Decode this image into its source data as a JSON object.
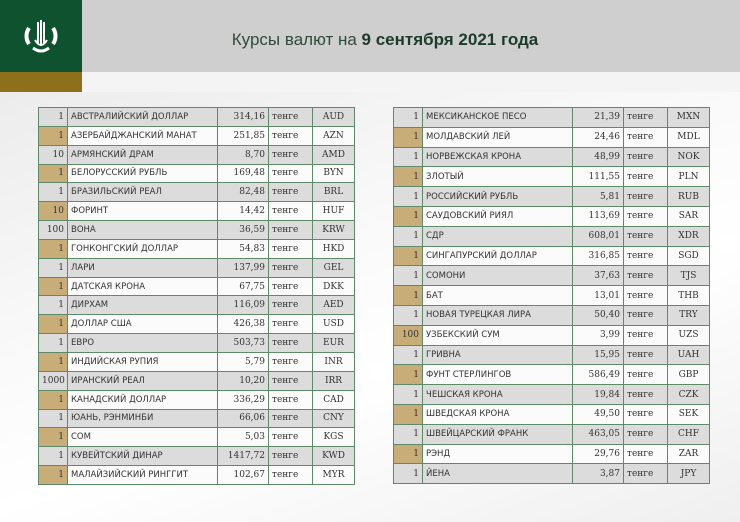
{
  "header": {
    "title_prefix": "Курсы валют на ",
    "title_date": "9 сентября 2021 года",
    "brand_color": "#0f5230",
    "accent_color": "#8e6f1b",
    "logo_icon": "national-bank-emblem-icon"
  },
  "unit_label": "тенге",
  "left_table": [
    {
      "qty": "1",
      "name": "АВСТРАЛИЙСКИЙ ДОЛЛАР",
      "rate": "314,16",
      "unit": "тенге",
      "code": "AUD"
    },
    {
      "qty": "1",
      "name": "АЗЕРБАЙДЖАНСКИЙ МАНАТ",
      "rate": "251,85",
      "unit": "тенге",
      "code": "AZN"
    },
    {
      "qty": "10",
      "name": "АРМЯНСКИЙ  ДРАМ",
      "rate": "8,70",
      "unit": "тенге",
      "code": "AMD"
    },
    {
      "qty": "1",
      "name": "БЕЛОРУССКИЙ РУБЛЬ",
      "rate": "169,48",
      "unit": "тенге",
      "code": "BYN"
    },
    {
      "qty": "1",
      "name": "БРАЗИЛЬСКИЙ РЕАЛ",
      "rate": "82,48",
      "unit": "тенге",
      "code": "BRL"
    },
    {
      "qty": "10",
      "name": "ФОРИНТ",
      "rate": "14,42",
      "unit": "тенге",
      "code": "HUF"
    },
    {
      "qty": "100",
      "name": "ВОНА",
      "rate": "36,59",
      "unit": "тенге",
      "code": "KRW"
    },
    {
      "qty": "1",
      "name": "ГОНКОНГСКИЙ ДОЛЛАР",
      "rate": "54,83",
      "unit": "тенге",
      "code": "HKD"
    },
    {
      "qty": "1",
      "name": "ЛАРИ",
      "rate": "137,99",
      "unit": "тенге",
      "code": "GEL"
    },
    {
      "qty": "1",
      "name": "ДАТСКАЯ КРОНА",
      "rate": "67,75",
      "unit": "тенге",
      "code": "DKK"
    },
    {
      "qty": "1",
      "name": "ДИРХАМ",
      "rate": "116,09",
      "unit": "тенге",
      "code": "AED"
    },
    {
      "qty": "1",
      "name": "ДОЛЛАР США",
      "rate": "426,38",
      "unit": "тенге",
      "code": "USD"
    },
    {
      "qty": "1",
      "name": "ЕВРО",
      "rate": "503,73",
      "unit": "тенге",
      "code": "EUR"
    },
    {
      "qty": "1",
      "name": "ИНДИЙСКАЯ РУПИЯ",
      "rate": "5,79",
      "unit": "тенге",
      "code": "INR"
    },
    {
      "qty": "1000",
      "name": "ИРАНСКИЙ РЕАЛ",
      "rate": "10,20",
      "unit": "тенге",
      "code": "IRR"
    },
    {
      "qty": "1",
      "name": "КАНАДСКИЙ ДОЛЛАР",
      "rate": "336,29",
      "unit": "тенге",
      "code": "CAD"
    },
    {
      "qty": "1",
      "name": "ЮАНЬ, РЭНМИНБИ",
      "rate": "66,06",
      "unit": "тенге",
      "code": "CNY"
    },
    {
      "qty": "1",
      "name": "СОМ",
      "rate": "5,03",
      "unit": "тенге",
      "code": "KGS"
    },
    {
      "qty": "1",
      "name": "КУВЕЙТСКИЙ ДИНАР",
      "rate": "1417,72",
      "unit": "тенге",
      "code": "KWD"
    },
    {
      "qty": "1",
      "name": "МАЛАЙЗИЙСКИЙ РИНГГИТ",
      "rate": "102,67",
      "unit": "тенге",
      "code": "MYR"
    }
  ],
  "right_table": [
    {
      "qty": "1",
      "name": "МЕКСИКАНСКОЕ ПЕСО",
      "rate": "21,39",
      "unit": "тенге",
      "code": "MXN"
    },
    {
      "qty": "1",
      "name": "МОЛДАВСКИЙ ЛЕЙ",
      "rate": "24,46",
      "unit": "тенге",
      "code": "MDL"
    },
    {
      "qty": "1",
      "name": "НОРВЕЖСКАЯ КРОНА",
      "rate": "48,99",
      "unit": "тенге",
      "code": "NOK"
    },
    {
      "qty": "1",
      "name": "ЗЛОТЫЙ",
      "rate": "111,55",
      "unit": "тенге",
      "code": "PLN"
    },
    {
      "qty": "1",
      "name": "РОССИЙСКИЙ РУБЛЬ",
      "rate": "5,81",
      "unit": "тенге",
      "code": "RUB"
    },
    {
      "qty": "1",
      "name": "САУДОВСКИЙ РИЯЛ",
      "rate": "113,69",
      "unit": "тенге",
      "code": "SAR"
    },
    {
      "qty": "1",
      "name": "СДР",
      "rate": "608,01",
      "unit": "тенге",
      "code": "XDR"
    },
    {
      "qty": "1",
      "name": "СИНГАПУРСКИЙ ДОЛЛАР",
      "rate": "316,85",
      "unit": "тенге",
      "code": "SGD"
    },
    {
      "qty": "1",
      "name": "СОМОНИ",
      "rate": "37,63",
      "unit": "тенге",
      "code": "TJS"
    },
    {
      "qty": "1",
      "name": "БАТ",
      "rate": "13,01",
      "unit": "тенге",
      "code": "THB"
    },
    {
      "qty": "1",
      "name": "НОВАЯ ТУРЕЦКАЯ ЛИРА",
      "rate": "50,40",
      "unit": "тенге",
      "code": "TRY"
    },
    {
      "qty": "100",
      "name": "УЗБЕКСКИЙ СУМ",
      "rate": "3,99",
      "unit": "тенге",
      "code": "UZS"
    },
    {
      "qty": "1",
      "name": "ГРИВНА",
      "rate": "15,95",
      "unit": "тенге",
      "code": "UAH"
    },
    {
      "qty": "1",
      "name": "ФУНТ СТЕРЛИНГОВ",
      "rate": "586,49",
      "unit": "тенге",
      "code": "GBP"
    },
    {
      "qty": "1",
      "name": "ЧЕШСКАЯ КРОНА",
      "rate": "19,84",
      "unit": "тенге",
      "code": "CZK"
    },
    {
      "qty": "1",
      "name": "ШВЕДСКАЯ КРОНА",
      "rate": "49,50",
      "unit": "тенге",
      "code": "SEK"
    },
    {
      "qty": "1",
      "name": "ШВЕЙЦАРСКИЙ ФРАНК",
      "rate": "463,05",
      "unit": "тенге",
      "code": "CHF"
    },
    {
      "qty": "1",
      "name": "РЭНД",
      "rate": "29,76",
      "unit": "тенге",
      "code": "ZAR"
    },
    {
      "qty": "1",
      "name": "ЙЕНА",
      "rate": "3,87",
      "unit": "тенге",
      "code": "JPY"
    }
  ]
}
